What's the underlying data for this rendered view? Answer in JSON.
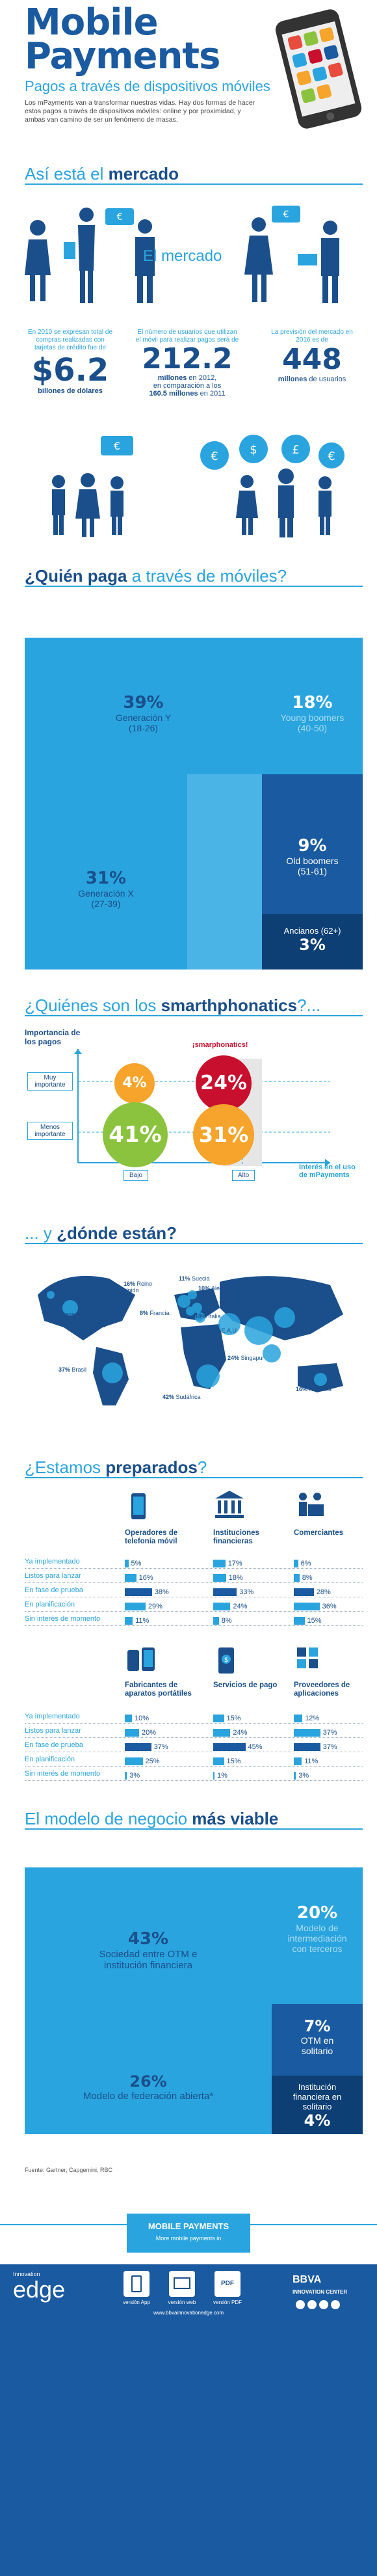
{
  "header": {
    "title_line1": "Mobile",
    "title_line2": "Payments",
    "subtitle": "Pagos a través de dispositivos móviles",
    "intro": "Los mPayments van a transformar nuestras vidas. Hay dos formas de hacer estos pagos a través de dispositivos móviles: online y por proximidad, y ambas van camino de ser un fenómeno de masas."
  },
  "market": {
    "section": "Así está el",
    "section_bold": "mercado",
    "center_label": "El mercado",
    "stat1": {
      "text": "En 2010 se expresan total de compras realizadas con tarjetas de crédito fue de",
      "value": "$6.2",
      "unit": "billones de dólares"
    },
    "stat2": {
      "text": "El número de usuarios que utilizan el móvil para realizar pagos será de",
      "value": "212.2",
      "unit": "millones",
      "unit_rest": "en 2012,",
      "compare": "en comparación a los",
      "compare_bold": "160.5 millones",
      "compare_rest": "en 2011"
    },
    "stat3": {
      "text": "La previsión del mercado en 2016 es de",
      "value": "448",
      "unit": "millones",
      "unit_rest": "de usuarios"
    }
  },
  "who": {
    "section": "¿Quién paga",
    "section_rest": "a través de móviles?",
    "blocks": [
      {
        "pct": "39%",
        "label": "Generación Y",
        "sub": "(18-26)"
      },
      {
        "pct": "18%",
        "label": "Young boomers",
        "sub": "(40-50)"
      },
      {
        "pct": "31%",
        "label": "Generación X",
        "sub": "(27-39)"
      },
      {
        "pct": "9%",
        "label": "Old boomers",
        "sub": "(51-61)"
      },
      {
        "pct": "3%",
        "label": "Ancianos (62+)"
      }
    ]
  },
  "smart": {
    "section": "¿Quiénes son los",
    "section_bold": "smarthphonatics",
    "section_end": "?...",
    "y_label": "Importancia de los pagos",
    "row_top": "Muy importante",
    "row_bottom": "Menos importante",
    "tag": "¡smarphonatics!",
    "x_low": "Bajo",
    "x_high": "Alto",
    "x_label": "Interés en el uso de mPayments",
    "circles": [
      {
        "pct": "4%"
      },
      {
        "pct": "24%"
      },
      {
        "pct": "41%"
      },
      {
        "pct": "31%"
      }
    ]
  },
  "where": {
    "section": "... y",
    "section_bold": "¿dónde están?",
    "labels": [
      {
        "pct": "7%",
        "name": "Canadá"
      },
      {
        "pct": "16%",
        "name": "Reino Unido"
      },
      {
        "pct": "11%",
        "name": "Suecia"
      },
      {
        "pct": "10%",
        "name": "Alemania"
      },
      {
        "pct": "31%",
        "name": "China"
      },
      {
        "pct": "8%",
        "name": "Francia"
      },
      {
        "pct": "20%",
        "name": "EE.UU"
      },
      {
        "pct": "10%",
        "name": "Italia"
      },
      {
        "pct": "44%",
        "name": "E.A.U"
      },
      {
        "pct": "60%",
        "name": "India"
      },
      {
        "pct": "24%",
        "name": "Singapur"
      },
      {
        "pct": "37%",
        "name": "Brasil"
      },
      {
        "pct": "16%",
        "name": "Australia"
      },
      {
        "pct": "42%",
        "name": "Sudáfrica"
      }
    ]
  },
  "ready": {
    "section": "¿Estamos",
    "section_bold": "preparados",
    "section_end": "?",
    "rows": [
      "Ya implementado",
      "Listos para lanzar",
      "En fase de prueba",
      "En planificación",
      "Sin interés de momento"
    ],
    "top": [
      {
        "title": "Operadores de telefonía móvil",
        "values": [
          "5%",
          "16%",
          "38%",
          "29%",
          "11%"
        ]
      },
      {
        "title": "Instituciones financieras",
        "values": [
          "17%",
          "18%",
          "33%",
          "24%",
          "8%"
        ]
      },
      {
        "title": "Comerciantes",
        "values": [
          "6%",
          "8%",
          "28%",
          "36%",
          "15%"
        ]
      }
    ],
    "bottom": [
      {
        "title": "Fabricantes de aparatos portátiles",
        "values": [
          "10%",
          "20%",
          "37%",
          "25%",
          "3%"
        ]
      },
      {
        "title": "Servicios de pago",
        "values": [
          "15%",
          "24%",
          "45%",
          "15%",
          "1%"
        ]
      },
      {
        "title": "Proveedores de aplicaciones",
        "values": [
          "12%",
          "37%",
          "37%",
          "11%",
          "3%"
        ]
      }
    ]
  },
  "model": {
    "section": "El modelo de negocio",
    "section_bold": "más viable",
    "blocks": [
      {
        "pct": "43%",
        "label": "Sociedad entre OTM e institución financiera"
      },
      {
        "pct": "20%",
        "label": "Modelo de intermediación con terceros"
      },
      {
        "pct": "7%",
        "label": "OTM en solitario"
      },
      {
        "pct": "26%",
        "label": "Modelo de federación abierta*"
      },
      {
        "pct": "4%",
        "label": "Institución financiera en solitario"
      }
    ]
  },
  "source": "Fuente: Gartner, Capgemini, RBC",
  "footer": {
    "banner": "MOBILE PAYMENTS",
    "banner_sub": "More mobile payments in",
    "brand_small": "Innovation",
    "brand": "edge",
    "bbva": "BBVA",
    "center": "INNOVATION CENTER",
    "v1": "versión App",
    "v2": "versión web",
    "v3": "versión PDF",
    "url": "www.bbvainnovationedge.com"
  },
  "colors": {
    "dark": "#1a4f8b",
    "light": "#2aa4de",
    "orange": "#f6a42b",
    "red": "#c8102e",
    "green": "#8bc33e"
  }
}
